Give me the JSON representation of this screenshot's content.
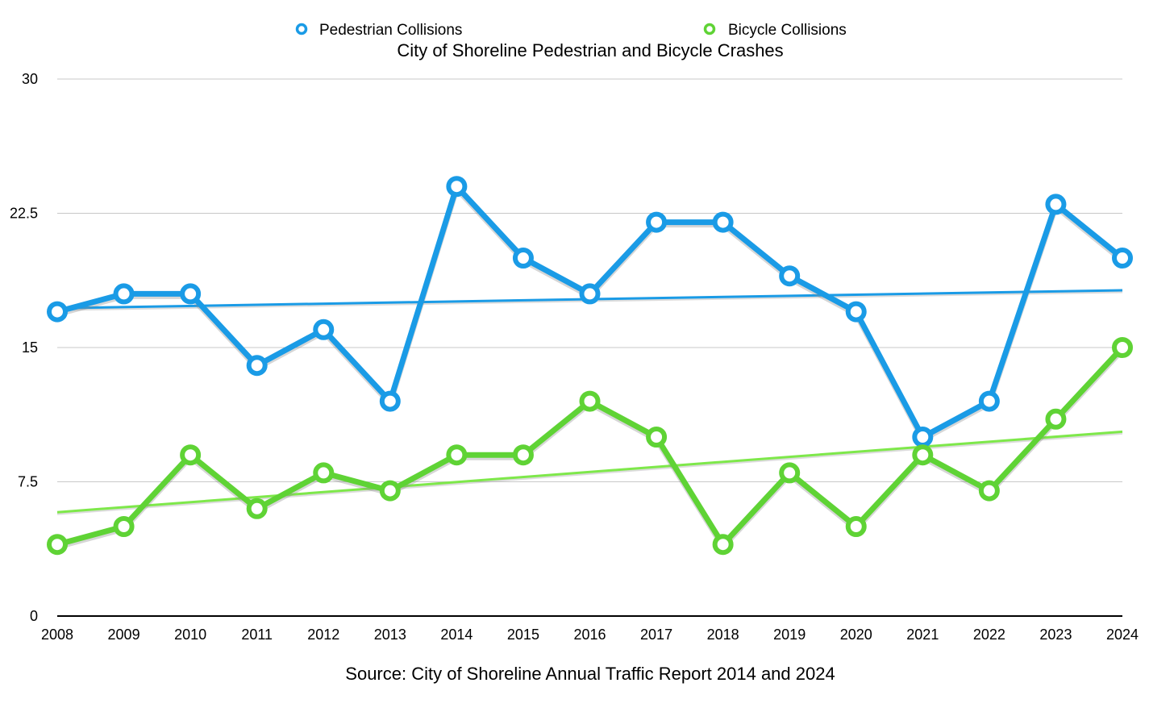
{
  "chart_data": {
    "type": "line",
    "title": "City of Shoreline Pedestrian and Bicycle Crashes",
    "source": "Source: City of Shoreline Annual Traffic Report 2014 and 2024",
    "x": [
      "2008",
      "2009",
      "2010",
      "2011",
      "2012",
      "2013",
      "2014",
      "2015",
      "2016",
      "2017",
      "2018",
      "2019",
      "2020",
      "2021",
      "2022",
      "2023",
      "2024"
    ],
    "y_ticks": [
      "0",
      "7.5",
      "15",
      "22.5",
      "30"
    ],
    "ylim": [
      0,
      30
    ],
    "grid": true,
    "legend_position": "top",
    "series": [
      {
        "name": "Pedestrian Collisions",
        "color": "#1a9be6",
        "values": [
          17,
          18,
          18,
          14,
          16,
          12,
          24,
          20,
          18,
          22,
          22,
          19,
          17,
          10,
          12,
          23,
          20
        ],
        "trendline": [
          17.2,
          18.2
        ]
      },
      {
        "name": "Bicycle Collisions",
        "color": "#5fd335",
        "trend_color": "#7ee84a",
        "values": [
          4,
          5,
          9,
          6,
          8,
          7,
          9,
          9,
          12,
          10,
          4,
          8,
          5,
          9,
          7,
          11,
          15
        ],
        "trendline": [
          5.8,
          10.3
        ]
      }
    ]
  }
}
